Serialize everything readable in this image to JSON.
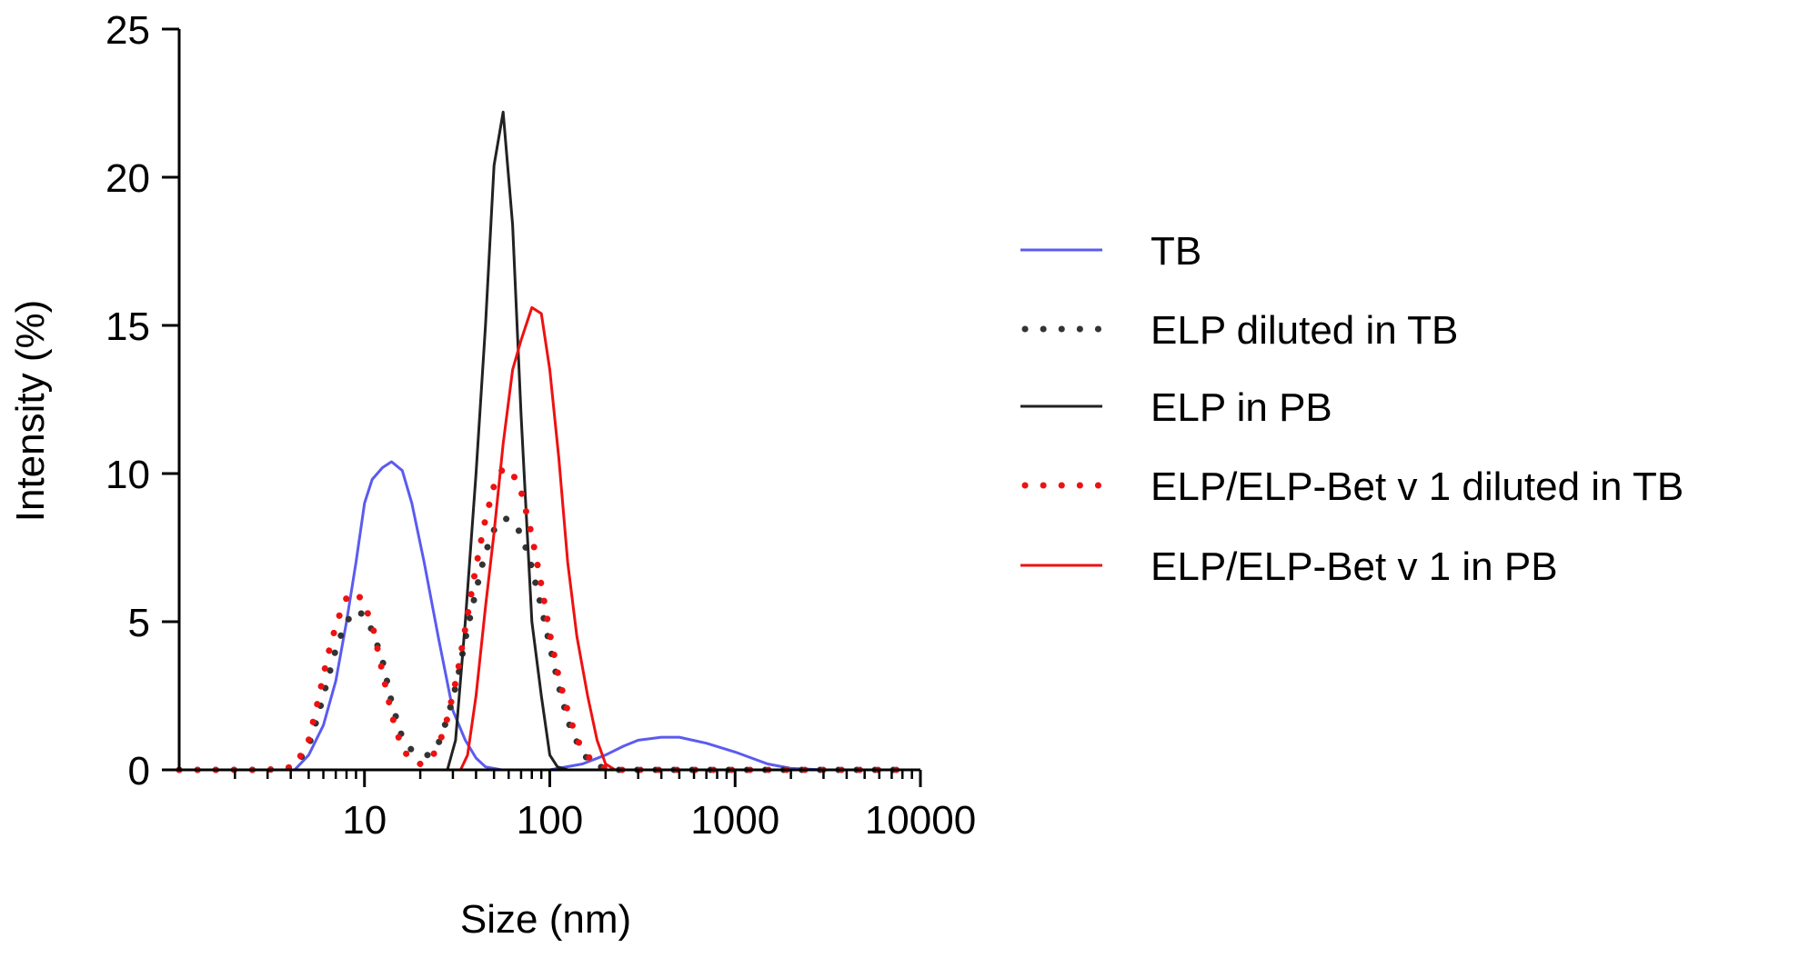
{
  "chart_data": {
    "type": "line",
    "title": "",
    "xlabel": "Size (nm)",
    "ylabel": "Intensity (%)",
    "xscale": "log",
    "xlim": [
      1,
      10000
    ],
    "ylim": [
      0,
      25
    ],
    "xticks": [
      10,
      100,
      1000,
      10000
    ],
    "xtick_labels": [
      "10",
      "100",
      "1000",
      "10000"
    ],
    "yticks": [
      0,
      5,
      10,
      15,
      20,
      25
    ],
    "ytick_labels": [
      "0",
      "5",
      "10",
      "15",
      "20",
      "25"
    ],
    "grid": false,
    "legend_position": "right",
    "series": [
      {
        "name": "TB",
        "color": "#5b5bf0",
        "style": "solid",
        "x": [
          1,
          3,
          4.2,
          5,
          6,
          7,
          8,
          9,
          10,
          11,
          12.5,
          14,
          16,
          18,
          21,
          25,
          30,
          35,
          40,
          45,
          55,
          80,
          100,
          150,
          200,
          250,
          300,
          400,
          500,
          700,
          1000,
          1500,
          2000,
          3000,
          5000,
          8000
        ],
        "y": [
          0,
          0,
          0,
          0.5,
          1.5,
          3,
          5,
          7,
          9,
          9.8,
          10.2,
          10.4,
          10.1,
          9,
          7,
          4.5,
          2,
          1,
          0.4,
          0.1,
          0,
          0,
          0,
          0.2,
          0.5,
          0.8,
          1,
          1.1,
          1.1,
          0.9,
          0.6,
          0.2,
          0.05,
          0,
          0,
          0
        ]
      },
      {
        "name": "ELP diluted in TB",
        "color": "#333333",
        "style": "dotted",
        "x": [
          1,
          3,
          4.2,
          5,
          5.6,
          6.3,
          7.1,
          8,
          9,
          10,
          11.2,
          12.6,
          14.1,
          15.8,
          17.8,
          20,
          22.4,
          25.1,
          28.2,
          31.6,
          35.5,
          39.8,
          44.7,
          50.1,
          56.2,
          63.1,
          70.8,
          79.4,
          89.1,
          100,
          112,
          126,
          141,
          158,
          178,
          200,
          224,
          251,
          300,
          500,
          1000,
          2000,
          5000,
          8000
        ],
        "y": [
          0,
          0,
          0.1,
          0.8,
          1.8,
          3,
          4.2,
          5,
          5.4,
          5.2,
          4.6,
          3.6,
          2.2,
          1.2,
          0.7,
          0.5,
          0.5,
          0.9,
          1.8,
          3,
          4.6,
          6,
          7.3,
          8.1,
          8.5,
          8.4,
          7.9,
          6.9,
          5.6,
          4.2,
          2.8,
          1.6,
          0.9,
          0.4,
          0.15,
          0.05,
          0,
          0,
          0,
          0,
          0,
          0,
          0,
          0
        ]
      },
      {
        "name": "ELP in PB",
        "color": "#222222",
        "style": "solid",
        "x": [
          1,
          20,
          28,
          31,
          35,
          40,
          45,
          50,
          56,
          63,
          70,
          80,
          90,
          100,
          110,
          125,
          200,
          1000,
          8000
        ],
        "y": [
          0,
          0,
          0,
          1,
          5,
          10,
          15,
          20.4,
          22.2,
          18.4,
          12,
          5,
          2.5,
          0.5,
          0.1,
          0,
          0,
          0,
          0
        ]
      },
      {
        "name": "ELP/ELP-Bet v 1 diluted in TB",
        "color": "#ee1111",
        "style": "dotted",
        "x": [
          1,
          3,
          4.2,
          5,
          5.6,
          6.3,
          7.1,
          8,
          9,
          10,
          11.2,
          12.6,
          14.1,
          15.8,
          17.8,
          20,
          22.4,
          25.1,
          28.2,
          31.6,
          35.5,
          39.8,
          44.7,
          50.1,
          56.2,
          63.1,
          70.8,
          79.4,
          89.1,
          100,
          112,
          126,
          141,
          158,
          178,
          200,
          224,
          251,
          300,
          500,
          1000,
          2000,
          5000,
          8000
        ],
        "y": [
          0,
          0,
          0.1,
          1,
          2.3,
          3.8,
          5,
          5.8,
          6,
          5.6,
          4.7,
          3.2,
          1.8,
          0.8,
          0.3,
          0.2,
          0.3,
          0.8,
          1.8,
          3.2,
          5,
          6.8,
          8.4,
          9.6,
          10.2,
          10,
          9.3,
          8,
          6.4,
          4.6,
          3.1,
          1.9,
          1,
          0.5,
          0.2,
          0.05,
          0,
          0,
          0,
          0,
          0,
          0,
          0,
          0
        ]
      },
      {
        "name": "ELP/ELP-Bet v 1 in PB",
        "color": "#ee1111",
        "style": "solid",
        "x": [
          1,
          20,
          33,
          36,
          40,
          45,
          50,
          56,
          63,
          70,
          80,
          90,
          100,
          112,
          125,
          140,
          160,
          180,
          200,
          225,
          300,
          1000,
          8000
        ],
        "y": [
          0,
          0,
          0,
          0.5,
          2.5,
          5.5,
          8,
          11,
          13.5,
          14.5,
          15.6,
          15.4,
          13.5,
          10.5,
          7,
          4.5,
          2.5,
          1,
          0.2,
          0,
          0,
          0,
          0
        ]
      }
    ]
  }
}
